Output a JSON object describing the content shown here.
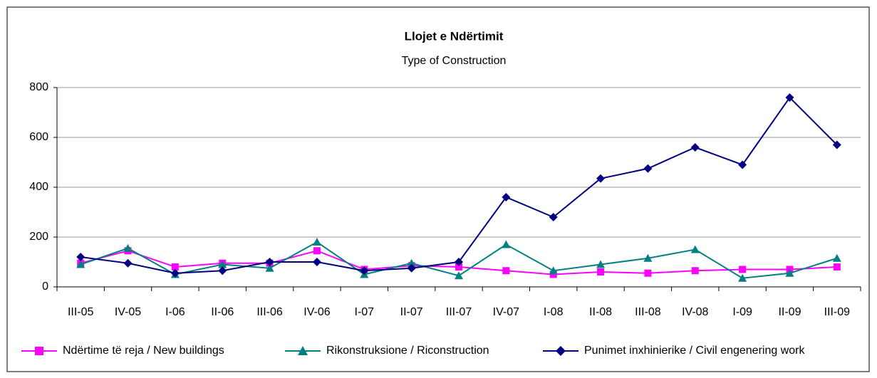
{
  "chart_data": {
    "type": "line",
    "title": "Llojet e Ndërtimit",
    "subtitle": "Type of Construction",
    "categories": [
      "III-05",
      "IV-05",
      "I-06",
      "II-06",
      "III-06",
      "IV-06",
      "I-07",
      "II-07",
      "III-07",
      "IV-07",
      "I-08",
      "II-08",
      "III-08",
      "IV-08",
      "I-09",
      "II-09",
      "III-09"
    ],
    "series": [
      {
        "name": "Ndërtime të reja / New buildings",
        "color": "#ff00ff",
        "marker": "square",
        "values": [
          95,
          145,
          80,
          95,
          95,
          145,
          70,
          85,
          80,
          65,
          50,
          60,
          55,
          65,
          70,
          70,
          80
        ]
      },
      {
        "name": "Rikonstruksione / Riconstruction",
        "color": "#008080",
        "marker": "triangle",
        "values": [
          90,
          155,
          50,
          90,
          75,
          180,
          50,
          95,
          45,
          170,
          65,
          90,
          115,
          150,
          35,
          55,
          115
        ]
      },
      {
        "name": "Punimet inxhinierike / Civil engenering work",
        "color": "#000080",
        "marker": "diamond",
        "values": [
          120,
          95,
          55,
          65,
          100,
          100,
          65,
          75,
          100,
          360,
          280,
          435,
          475,
          560,
          490,
          760,
          570
        ]
      }
    ],
    "ylim": [
      0,
      800
    ],
    "yticks": [
      0,
      200,
      400,
      600,
      800
    ],
    "grid": true,
    "legend": "bottom"
  }
}
